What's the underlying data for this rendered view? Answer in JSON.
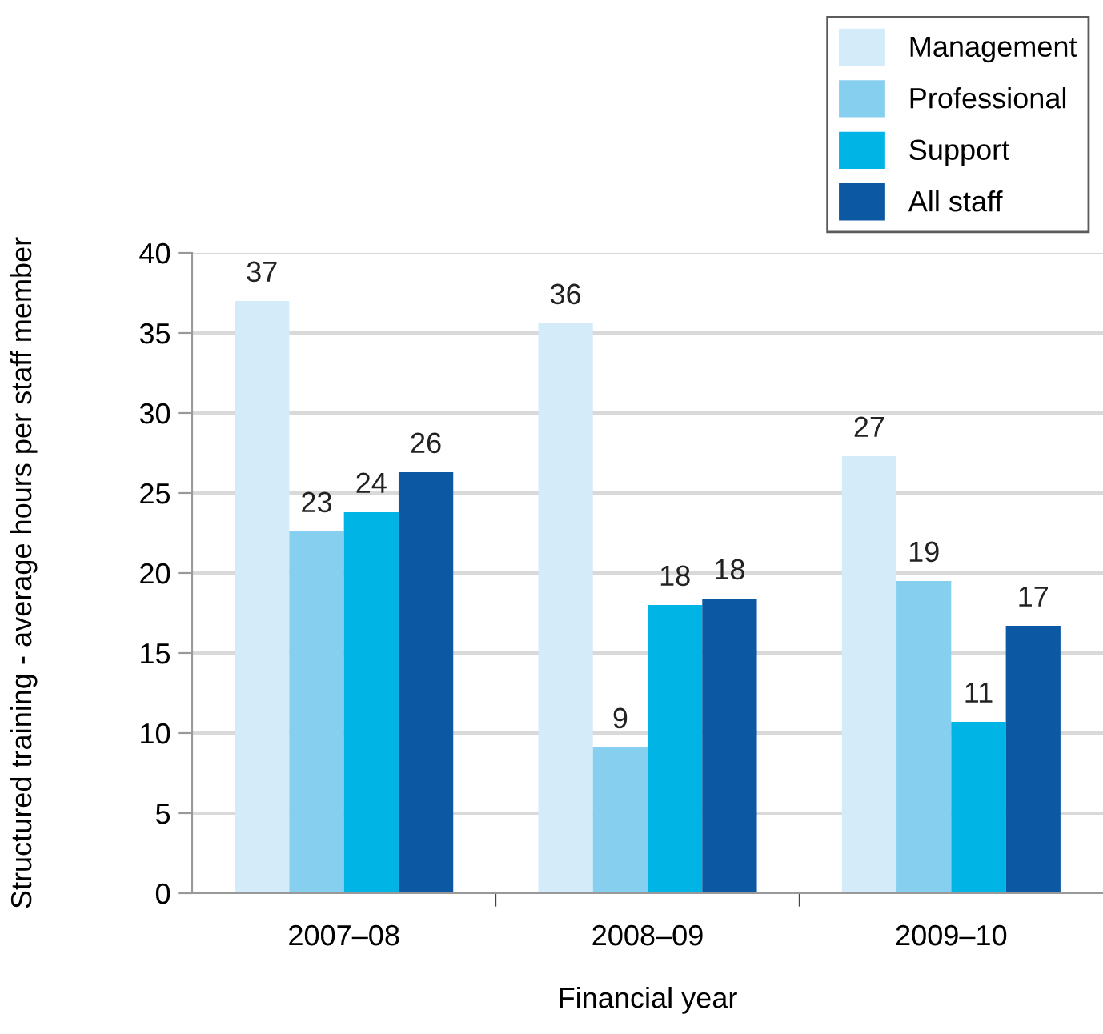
{
  "chart_data": {
    "type": "bar",
    "xlabel": "Financial year",
    "ylabel": "Structured training - average hours per staff member",
    "categories": [
      "2007–08",
      "2008–09",
      "2009–10"
    ],
    "series": [
      {
        "name": "Management",
        "color": "#d4ebf9",
        "values": [
          37.0,
          35.6,
          27.3
        ],
        "value_labels": [
          "37",
          "36",
          "27"
        ]
      },
      {
        "name": "Professional",
        "color": "#86cfef",
        "values": [
          22.6,
          9.1,
          19.5
        ],
        "value_labels": [
          "23",
          "9",
          "19"
        ]
      },
      {
        "name": "Support",
        "color": "#00b4e6",
        "values": [
          23.8,
          18.0,
          10.7
        ],
        "value_labels": [
          "24",
          "18",
          "11"
        ]
      },
      {
        "name": "All staff",
        "color": "#0d58a2",
        "values": [
          26.3,
          18.4,
          16.7
        ],
        "value_labels": [
          "26",
          "18",
          "17"
        ]
      }
    ],
    "ylim": [
      0,
      40
    ],
    "yticks": [
      0,
      5,
      10,
      15,
      20,
      25,
      30,
      35,
      40
    ],
    "grid": "y",
    "legend": "top right"
  }
}
